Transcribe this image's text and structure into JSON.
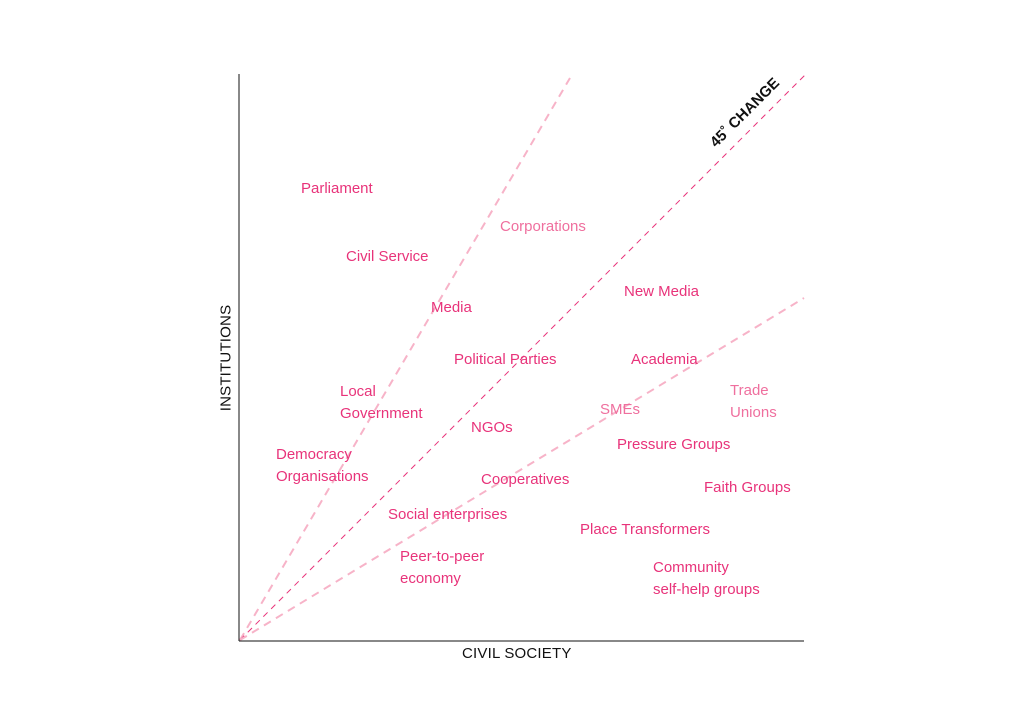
{
  "colors": {
    "label_strong": "#e8337a",
    "label_light": "#ef6f9e",
    "dashed_bold": "#e8337a",
    "dashed_light": "#f7b3c8",
    "axis": "#111111"
  },
  "axes": {
    "x_label": "CIVIL SOCIETY",
    "y_label": "INSTITUTIONS"
  },
  "diagonal_label": "45˚ CHANGE",
  "items": [
    {
      "id": "parliament",
      "lines": [
        "Parliament"
      ],
      "tone": "strong"
    },
    {
      "id": "corporations",
      "lines": [
        "Corporations"
      ],
      "tone": "light"
    },
    {
      "id": "civil-service",
      "lines": [
        "Civil Service"
      ],
      "tone": "strong"
    },
    {
      "id": "new-media",
      "lines": [
        "New Media"
      ],
      "tone": "strong"
    },
    {
      "id": "media",
      "lines": [
        "Media"
      ],
      "tone": "strong"
    },
    {
      "id": "political-parties",
      "lines": [
        "Political Parties"
      ],
      "tone": "strong"
    },
    {
      "id": "academia",
      "lines": [
        "Academia"
      ],
      "tone": "strong"
    },
    {
      "id": "local-government",
      "lines": [
        "Local",
        "Government"
      ],
      "tone": "strong"
    },
    {
      "id": "trade-unions",
      "lines": [
        "Trade",
        "Unions"
      ],
      "tone": "light"
    },
    {
      "id": "smes",
      "lines": [
        "SMEs"
      ],
      "tone": "light"
    },
    {
      "id": "ngos",
      "lines": [
        "NGOs"
      ],
      "tone": "strong"
    },
    {
      "id": "pressure-groups",
      "lines": [
        "Pressure Groups"
      ],
      "tone": "strong"
    },
    {
      "id": "democracy-organisations",
      "lines": [
        "Democracy",
        "Organisations"
      ],
      "tone": "strong"
    },
    {
      "id": "cooperatives",
      "lines": [
        "Cooperatives"
      ],
      "tone": "strong"
    },
    {
      "id": "faith-groups",
      "lines": [
        "Faith Groups"
      ],
      "tone": "strong"
    },
    {
      "id": "social-enterprises",
      "lines": [
        "Social enterprises"
      ],
      "tone": "strong"
    },
    {
      "id": "place-transformers",
      "lines": [
        "Place Transformers"
      ],
      "tone": "strong"
    },
    {
      "id": "peer-to-peer-economy",
      "lines": [
        "Peer-to-peer",
        "economy"
      ],
      "tone": "strong"
    },
    {
      "id": "community-self-help-groups",
      "lines": [
        "Community",
        "self-help groups"
      ],
      "tone": "strong"
    }
  ]
}
